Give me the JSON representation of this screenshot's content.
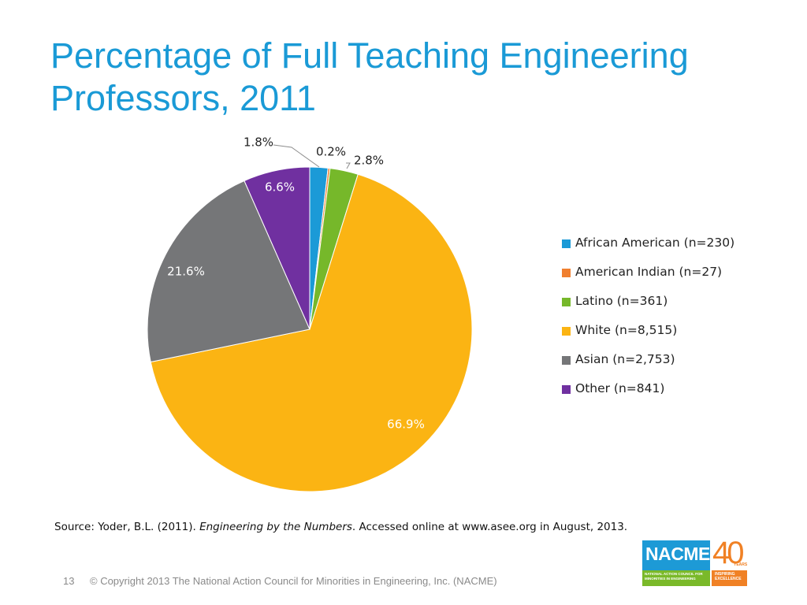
{
  "slide": {
    "title_line1": "Percentage of Full Teaching Engineering",
    "title_line2": "Professors, 2011",
    "source_prefix": "Source: Yoder, B.L. (2011). ",
    "source_italic": "Engineering by the Numbers",
    "source_suffix": ". Accessed online at www.asee.org in August, 2013.",
    "page_number": "13",
    "copyright": "© Copyright 2013 The National Action Council for Minorities in Engineering, Inc. (NACME)"
  },
  "logo": {
    "name": "NACME",
    "subtitle_line1": "NATIONAL ACTION COUNCIL FOR",
    "subtitle_line2": "MINORITIES IN ENGINEERING",
    "anniversary": "40",
    "anniversary_word": "YEARS",
    "tagline_line1": "INSPIRING",
    "tagline_line2": "EXCELLENCE"
  },
  "chart_data": {
    "type": "pie",
    "title": "",
    "legend_position": "right",
    "slices": [
      {
        "label": "African American (n=230)",
        "value": 1.8,
        "display": "1.8%",
        "color": "#1b9ad7"
      },
      {
        "label": "American Indian (n=27)",
        "value": 0.2,
        "display": "0.2%",
        "color": "#f07f2f"
      },
      {
        "label": "Latino (n=361)",
        "value": 2.8,
        "display": "2.8%",
        "color": "#76b82a"
      },
      {
        "label": "White (n=8,515)",
        "value": 66.9,
        "display": "66.9%",
        "color": "#fbb413"
      },
      {
        "label": "Asian (n=2,753)",
        "value": 21.6,
        "display": "21.6%",
        "color": "#757678"
      },
      {
        "label": "Other (n=841)",
        "value": 6.6,
        "display": "6.6%",
        "color": "#7030a0"
      }
    ]
  }
}
